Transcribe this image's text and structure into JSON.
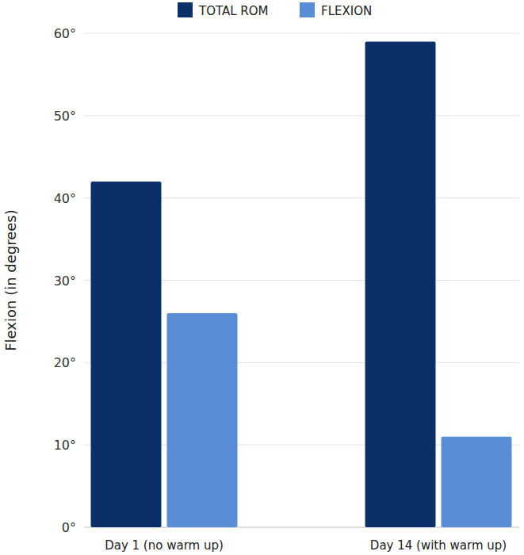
{
  "chart_data": {
    "type": "bar",
    "y_label": "Flexion (in degrees)",
    "categories": [
      "Day 1 (no warm up)",
      "Day 14 (with warm up)"
    ],
    "series": [
      {
        "name": "TOTAL ROM",
        "color": "#0b3069",
        "values": [
          42,
          59
        ]
      },
      {
        "name": "FLEXION",
        "color": "#5b8dd6",
        "values": [
          26,
          11
        ]
      }
    ],
    "ylim": [
      0,
      60
    ],
    "yticks": [
      {
        "value": 0,
        "label": "0°"
      },
      {
        "value": 10,
        "label": "10°"
      },
      {
        "value": 20,
        "label": "20°"
      },
      {
        "value": 30,
        "label": "30°"
      },
      {
        "value": 40,
        "label": "40°"
      },
      {
        "value": 50,
        "label": "50°"
      },
      {
        "value": 60,
        "label": "60°"
      }
    ],
    "grid": true,
    "legend": "top"
  }
}
